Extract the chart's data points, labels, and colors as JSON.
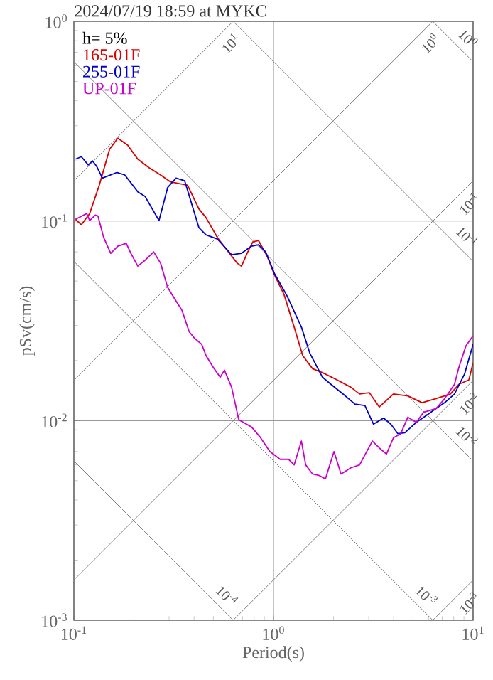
{
  "chart_data": {
    "type": "line",
    "title": "2024/07/19 18:59 at MYKC",
    "xlabel": "Period(s)",
    "ylabel": "pSv(cm/s)",
    "legend_title": "h= 5%",
    "log": "xy",
    "grid": true,
    "legend": "top left",
    "xlim": [
      0.1,
      10
    ],
    "ylim": [
      0.001,
      1
    ],
    "xticks": [
      {
        "value": 0.1,
        "label": "10$^{-1}$"
      },
      {
        "value": 1,
        "label": "10$^{0}$"
      },
      {
        "value": 10,
        "label": "10$^{1}$"
      }
    ],
    "yticks": [
      {
        "value": 0.001,
        "label": "10$^{-3}$"
      },
      {
        "value": 0.01,
        "label": "10$^{-2}$"
      },
      {
        "value": 0.1,
        "label": "10$^{-1}$"
      },
      {
        "value": 1,
        "label": "10$^{0}$"
      }
    ],
    "annotations": [
      {
        "text": "10$^{1}$",
        "x": 0.628,
        "y": 1
      },
      {
        "text": "10$^{0}$",
        "x": 6.28,
        "y": 1
      },
      {
        "text": "10$^{-1}$",
        "x": 10,
        "y": 0.159
      },
      {
        "text": "10$^{-2}$",
        "x": 10,
        "y": 0.0159
      },
      {
        "text": "10$^{-3}$",
        "x": 10,
        "y": 0.00159
      },
      {
        "text": "10$^{0}$",
        "x": 10,
        "y": 0.628
      },
      {
        "text": "10$^{-1}$",
        "x": 10,
        "y": 0.0628
      },
      {
        "text": "10$^{-2}$",
        "x": 10,
        "y": 0.00628
      },
      {
        "text": "10$^{-3}$",
        "x": 6.28,
        "y": 0.001
      },
      {
        "text": "10$^{-4}$",
        "x": 0.628,
        "y": 0.001
      }
    ],
    "series": [
      {
        "color": "#808080",
        "x": [
          0.1,
          0.628
        ],
        "values": [
          0.159,
          1
        ]
      },
      {
        "color": "#808080",
        "x": [
          0.1,
          6.28
        ],
        "values": [
          0.0159,
          1
        ]
      },
      {
        "color": "#808080",
        "x": [
          0.1,
          10
        ],
        "values": [
          0.00159,
          0.159
        ]
      },
      {
        "color": "#808080",
        "x": [
          0.628,
          10
        ],
        "values": [
          0.001,
          0.0159
        ]
      },
      {
        "color": "#808080",
        "x": [
          6.28,
          10
        ],
        "values": [
          0.001,
          0.00159
        ]
      },
      {
        "color": "#808080",
        "x": [
          6.28,
          10
        ],
        "values": [
          1,
          0.628
        ]
      },
      {
        "color": "#808080",
        "x": [
          0.628,
          10
        ],
        "values": [
          1,
          0.0628
        ]
      },
      {
        "color": "#808080",
        "x": [
          0.1,
          10
        ],
        "values": [
          0.628,
          0.00628
        ]
      },
      {
        "color": "#808080",
        "x": [
          0.1,
          6.28
        ],
        "values": [
          0.0628,
          0.001
        ]
      },
      {
        "color": "#808080",
        "x": [
          0.1,
          0.628
        ],
        "values": [
          0.00628,
          0.001
        ]
      },
      {
        "name": "165-01F",
        "color": "#dd0000",
        "x": [
          0.102,
          0.109,
          0.12,
          0.134,
          0.151,
          0.166,
          0.186,
          0.209,
          0.238,
          0.272,
          0.305,
          0.371,
          0.423,
          0.459,
          0.524,
          0.587,
          0.659,
          0.692,
          0.738,
          0.788,
          0.842,
          0.929,
          1.01,
          1.13,
          1.27,
          1.4,
          1.57,
          1.76,
          2.08,
          2.44,
          2.7,
          3.02,
          3.39,
          3.99,
          4.71,
          5.55,
          6.53,
          7.7,
          8.49,
          9.53,
          10
        ],
        "values": [
          0.102,
          0.0957,
          0.109,
          0.151,
          0.229,
          0.26,
          0.24,
          0.204,
          0.185,
          0.17,
          0.157,
          0.151,
          0.115,
          0.104,
          0.0826,
          0.0711,
          0.0614,
          0.0594,
          0.0689,
          0.0785,
          0.0798,
          0.0667,
          0.0539,
          0.0428,
          0.0294,
          0.0212,
          0.0182,
          0.0174,
          0.016,
          0.0147,
          0.0136,
          0.0138,
          0.0117,
          0.0136,
          0.0133,
          0.0123,
          0.0129,
          0.0136,
          0.0152,
          0.016,
          0.0195
        ]
      },
      {
        "name": "255-01F",
        "color": "#0000cc",
        "x": [
          0.102,
          0.109,
          0.118,
          0.124,
          0.13,
          0.139,
          0.164,
          0.18,
          0.209,
          0.227,
          0.267,
          0.295,
          0.325,
          0.359,
          0.423,
          0.459,
          0.524,
          0.617,
          0.692,
          0.776,
          0.842,
          0.914,
          1.01,
          1.17,
          1.38,
          1.52,
          1.76,
          1.94,
          2.29,
          2.56,
          2.87,
          3.17,
          3.56,
          3.87,
          4.2,
          4.55,
          5.19,
          5.82,
          6.53,
          7.21,
          8.07,
          9.06,
          10
        ],
        "values": [
          0.204,
          0.21,
          0.191,
          0.2,
          0.188,
          0.164,
          0.175,
          0.17,
          0.14,
          0.133,
          0.1005,
          0.147,
          0.164,
          0.159,
          0.0926,
          0.0853,
          0.0811,
          0.0678,
          0.0689,
          0.0748,
          0.076,
          0.07,
          0.0547,
          0.0421,
          0.0294,
          0.0218,
          0.0165,
          0.0152,
          0.0133,
          0.0121,
          0.0119,
          0.0096,
          0.0103,
          0.0096,
          0.0086,
          0.0087,
          0.0098,
          0.0106,
          0.0115,
          0.0123,
          0.0136,
          0.0171,
          0.0241
        ]
      },
      {
        "name": "UP-01F",
        "color": "#cc00cc",
        "x": [
          0.102,
          0.11,
          0.116,
          0.12,
          0.128,
          0.132,
          0.141,
          0.153,
          0.166,
          0.183,
          0.193,
          0.209,
          0.227,
          0.251,
          0.272,
          0.295,
          0.32,
          0.348,
          0.378,
          0.403,
          0.437,
          0.459,
          0.499,
          0.541,
          0.568,
          0.617,
          0.67,
          0.776,
          0.855,
          0.959,
          1.08,
          1.19,
          1.27,
          1.38,
          1.45,
          1.57,
          1.7,
          1.82,
          2.01,
          2.18,
          2.44,
          2.7,
          3.13,
          3.39,
          3.68,
          3.99,
          4.34,
          4.71,
          5.19,
          5.64,
          6.53,
          7.21,
          8.07,
          8.49,
          9.21,
          10
        ],
        "values": [
          0.102,
          0.106,
          0.109,
          0.1005,
          0.107,
          0.106,
          0.0826,
          0.0689,
          0.0748,
          0.0773,
          0.0689,
          0.0594,
          0.0635,
          0.07,
          0.0614,
          0.0465,
          0.0407,
          0.0357,
          0.0279,
          0.0258,
          0.0241,
          0.0212,
          0.0185,
          0.0165,
          0.0179,
          0.0147,
          0.0101,
          0.0093,
          0.0083,
          0.007,
          0.0064,
          0.0064,
          0.006,
          0.0079,
          0.006,
          0.0054,
          0.0053,
          0.0051,
          0.007,
          0.0054,
          0.0058,
          0.006,
          0.0079,
          0.0073,
          0.0068,
          0.0082,
          0.0086,
          0.0104,
          0.0098,
          0.011,
          0.0115,
          0.0129,
          0.0152,
          0.0185,
          0.0237,
          0.0266
        ]
      }
    ]
  }
}
